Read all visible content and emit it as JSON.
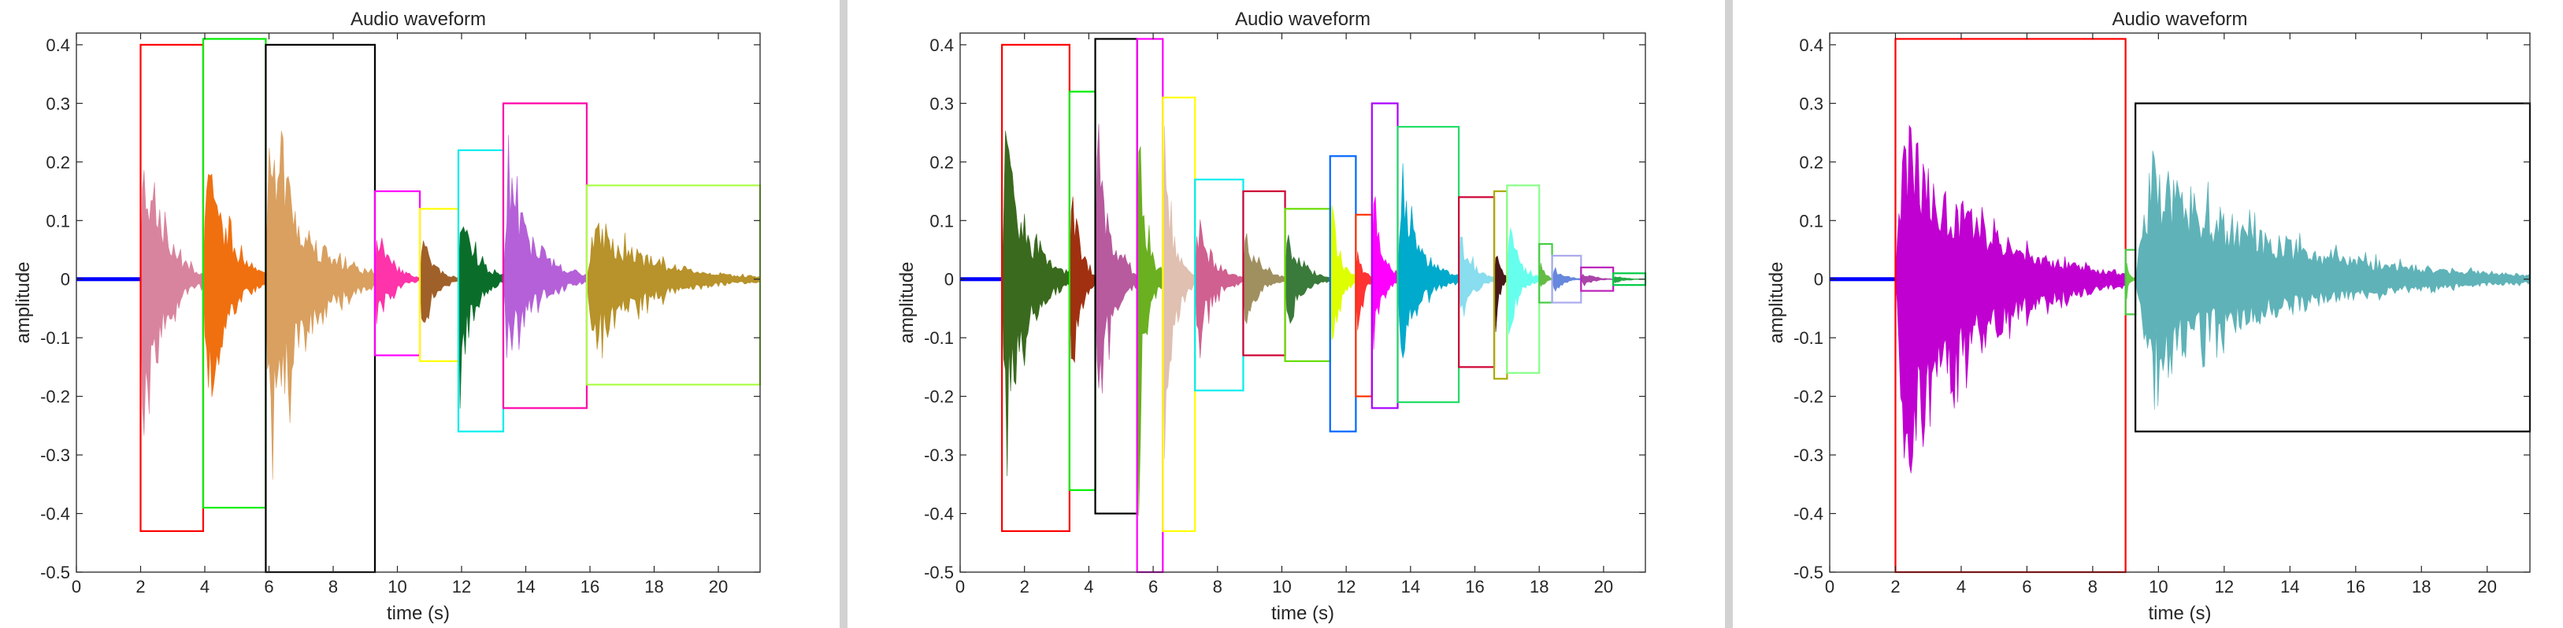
{
  "chart_data": [
    {
      "type": "area",
      "title": "Audio waveform",
      "xlabel": "time (s)",
      "ylabel": "amplitude",
      "xlim": [
        0,
        21.3
      ],
      "ylim": [
        -0.5,
        0.42
      ],
      "xticks": [
        0,
        2,
        4,
        6,
        8,
        10,
        12,
        14,
        16,
        18,
        20
      ],
      "yticks": [
        -0.5,
        -0.4,
        -0.3,
        -0.2,
        -0.1,
        0,
        0.1,
        0.2,
        0.3,
        0.4
      ],
      "ytick_labels": [
        "-0.5",
        "-0.4",
        "-0.3",
        "-0.2",
        "-0.1",
        "0",
        "0.1",
        "0.2",
        "0.3",
        "0.4"
      ],
      "grid": false,
      "baseline": {
        "x0": 0,
        "x1": 2.0,
        "color": "#0000ff"
      },
      "segments": [
        {
          "start": 2.0,
          "end": 3.95,
          "max": 0.4,
          "min": -0.43,
          "fill": "#d9849e",
          "box": "#ff0000"
        },
        {
          "start": 3.95,
          "end": 5.9,
          "max": 0.41,
          "min": -0.39,
          "fill": "#f07010",
          "box": "#00ee00"
        },
        {
          "start": 5.9,
          "end": 9.3,
          "max": 0.4,
          "min": -0.5,
          "fill": "#d9a060",
          "box": "#000000"
        },
        {
          "start": 9.3,
          "end": 10.7,
          "max": 0.15,
          "min": -0.13,
          "fill": "#ff33aa",
          "box": "#ff00ff"
        },
        {
          "start": 10.7,
          "end": 11.9,
          "max": 0.12,
          "min": -0.14,
          "fill": "#a0602a",
          "box": "#ffff00"
        },
        {
          "start": 11.9,
          "end": 13.3,
          "max": 0.22,
          "min": -0.26,
          "fill": "#0a6e2a",
          "box": "#00eeee"
        },
        {
          "start": 13.3,
          "end": 15.9,
          "max": 0.3,
          "min": -0.22,
          "fill": "#b560d8",
          "box": "#ff00aa"
        },
        {
          "start": 15.9,
          "end": 21.3,
          "max": 0.16,
          "min": -0.18,
          "fill": "#b8922a",
          "box": "#aaff44"
        }
      ]
    },
    {
      "type": "area",
      "title": "Audio waveform",
      "xlabel": "time (s)",
      "ylabel": "amplitude",
      "xlim": [
        0,
        21.3
      ],
      "ylim": [
        -0.5,
        0.42
      ],
      "xticks": [
        0,
        2,
        4,
        6,
        8,
        10,
        12,
        14,
        16,
        18,
        20
      ],
      "yticks": [
        -0.5,
        -0.4,
        -0.3,
        -0.2,
        -0.1,
        0,
        0.1,
        0.2,
        0.3,
        0.4
      ],
      "ytick_labels": [
        "-0.5",
        "-0.4",
        "-0.3",
        "-0.2",
        "-0.1",
        "0",
        "0.1",
        "0.2",
        "0.3",
        "0.4"
      ],
      "grid": false,
      "baseline": {
        "x0": 0,
        "x1": 1.3,
        "color": "#0000ff"
      },
      "segments": [
        {
          "start": 1.3,
          "end": 3.4,
          "max": 0.4,
          "min": -0.43,
          "fill": "#3a6a1e",
          "box": "#ff0000"
        },
        {
          "start": 3.4,
          "end": 4.2,
          "max": 0.32,
          "min": -0.36,
          "fill": "#a03010",
          "box": "#00ee00"
        },
        {
          "start": 4.2,
          "end": 5.5,
          "max": 0.41,
          "min": -0.4,
          "fill": "#b85a9e",
          "box": "#000000"
        },
        {
          "start": 5.5,
          "end": 6.3,
          "max": 0.41,
          "min": -0.5,
          "fill": "#6ab020",
          "box": "#ff00ff"
        },
        {
          "start": 6.3,
          "end": 7.3,
          "max": 0.31,
          "min": -0.43,
          "fill": "#e0c0b0",
          "box": "#ffff00"
        },
        {
          "start": 7.3,
          "end": 8.8,
          "max": 0.17,
          "min": -0.19,
          "fill": "#d06090",
          "box": "#00eeee"
        },
        {
          "start": 8.8,
          "end": 10.1,
          "max": 0.15,
          "min": -0.13,
          "fill": "#a09060",
          "box": "#cc0033"
        },
        {
          "start": 10.1,
          "end": 11.5,
          "max": 0.12,
          "min": -0.14,
          "fill": "#3a7a3a",
          "box": "#66dd00"
        },
        {
          "start": 11.5,
          "end": 12.3,
          "max": 0.21,
          "min": -0.26,
          "fill": "#ddff00",
          "box": "#0066ff"
        },
        {
          "start": 12.3,
          "end": 12.8,
          "max": 0.11,
          "min": -0.2,
          "fill": "#ff3333",
          "box": "#ff3300"
        },
        {
          "start": 12.8,
          "end": 13.6,
          "max": 0.3,
          "min": -0.22,
          "fill": "#ff00ff",
          "box": "#aa00ff"
        },
        {
          "start": 13.6,
          "end": 15.5,
          "max": 0.26,
          "min": -0.21,
          "fill": "#00aacc",
          "box": "#22dd66"
        },
        {
          "start": 15.5,
          "end": 16.6,
          "max": 0.14,
          "min": -0.15,
          "fill": "#88ddee",
          "box": "#cc0033"
        },
        {
          "start": 16.6,
          "end": 17.0,
          "max": 0.15,
          "min": -0.17,
          "fill": "#4a1818",
          "box": "#aaaa00"
        },
        {
          "start": 17.0,
          "end": 18.0,
          "max": 0.16,
          "min": -0.16,
          "fill": "#66ffee",
          "box": "#88ff88"
        },
        {
          "start": 18.0,
          "end": 18.4,
          "max": 0.06,
          "min": -0.04,
          "fill": "#66bb44",
          "box": "#44cc44"
        },
        {
          "start": 18.4,
          "end": 19.3,
          "max": 0.04,
          "min": -0.04,
          "fill": "#6688dd",
          "box": "#aaaaee"
        },
        {
          "start": 19.3,
          "end": 20.3,
          "max": 0.02,
          "min": -0.02,
          "fill": "#aa44aa",
          "box": "#bb22bb"
        },
        {
          "start": 20.3,
          "end": 21.3,
          "max": 0.01,
          "min": -0.01,
          "fill": "#22aa44",
          "box": "#00cc44"
        }
      ]
    },
    {
      "type": "area",
      "title": "Audio waveform",
      "xlabel": "time (s)",
      "ylabel": "amplitude",
      "xlim": [
        0,
        21.3
      ],
      "ylim": [
        -0.5,
        0.42
      ],
      "xticks": [
        0,
        2,
        4,
        6,
        8,
        10,
        12,
        14,
        16,
        18,
        20
      ],
      "yticks": [
        -0.5,
        -0.4,
        -0.3,
        -0.2,
        -0.1,
        0,
        0.1,
        0.2,
        0.3,
        0.4
      ],
      "ytick_labels": [
        "-0.5",
        "-0.4",
        "-0.3",
        "-0.2",
        "-0.1",
        "0",
        "0.1",
        "0.2",
        "0.3",
        "0.4"
      ],
      "grid": false,
      "baseline": {
        "x0": 0,
        "x1": 2.0,
        "color": "#0000ff"
      },
      "segments": [
        {
          "start": 2.0,
          "end": 9.0,
          "max": 0.41,
          "min": -0.5,
          "fill": "#c000d0",
          "box": "#ff0000"
        },
        {
          "start": 9.0,
          "end": 9.3,
          "max": 0.05,
          "min": -0.06,
          "fill": "#66cc44",
          "box": "#44cc44"
        },
        {
          "start": 9.3,
          "end": 21.3,
          "max": 0.3,
          "min": -0.26,
          "fill": "#5fb3b8",
          "box": "#000000"
        }
      ]
    }
  ]
}
